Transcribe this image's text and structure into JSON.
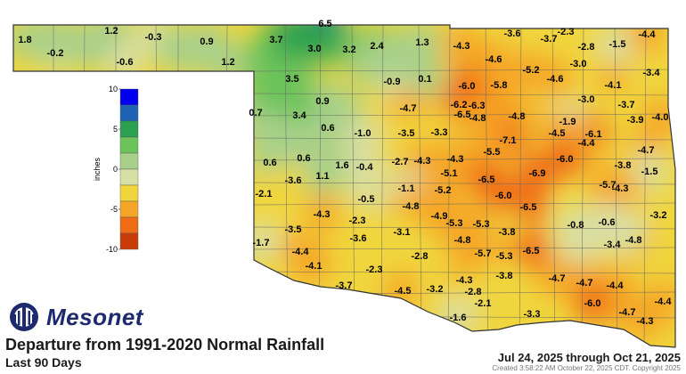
{
  "brand": {
    "name": "Mesonet"
  },
  "title": "Departure from 1991-2020 Normal Rainfall",
  "subtitle": "Last 90 Days",
  "date_range": "Jul 24, 2025 through Oct 21, 2025",
  "created": "Created 3:58:22 AM October 22, 2025 CDT. Copyright 2025",
  "legend": {
    "unit": "inches",
    "ticks": [
      "10",
      "5",
      "0",
      "-5",
      "-10"
    ],
    "colors": [
      "#0000ee",
      "#1f64b4",
      "#2aa050",
      "#6cc35a",
      "#a8d08a",
      "#d8dfa4",
      "#f0d63c",
      "#f5a628",
      "#f06c14",
      "#c83c0a"
    ]
  },
  "map_values": [
    {
      "label": "1.8",
      "v": 1.8,
      "region": "panhandle"
    },
    {
      "label": "-0.2",
      "v": -0.2,
      "region": "panhandle"
    },
    {
      "label": "1.2",
      "v": 1.2,
      "region": "panhandle"
    },
    {
      "label": "-0.3",
      "v": -0.3,
      "region": "panhandle"
    },
    {
      "label": "-0.6",
      "v": -0.6,
      "region": "panhandle"
    },
    {
      "label": "0.9",
      "v": 0.9,
      "region": "panhandle"
    },
    {
      "label": "1.2",
      "v": 1.2,
      "region": "panhandle"
    },
    {
      "label": "6.5",
      "v": 6.5,
      "region": "north central"
    },
    {
      "label": "3.7",
      "v": 3.7,
      "region": "northwest"
    },
    {
      "label": "3.0",
      "v": 3.0,
      "region": "north central"
    },
    {
      "label": "3.2",
      "v": 3.2,
      "region": "north central"
    },
    {
      "label": "2.4",
      "v": 2.4,
      "region": "north central"
    },
    {
      "label": "1.3",
      "v": 1.3,
      "region": "north central"
    },
    {
      "label": "-4.3",
      "v": -4.3,
      "region": "north central"
    },
    {
      "label": "-3.6",
      "v": -3.6,
      "region": "northeast"
    },
    {
      "label": "-3.7",
      "v": -3.7,
      "region": "northeast"
    },
    {
      "label": "-2.3",
      "v": -2.3,
      "region": "northeast"
    },
    {
      "label": "-2.8",
      "v": -2.8,
      "region": "northeast"
    },
    {
      "label": "-1.5",
      "v": -1.5,
      "region": "northeast"
    },
    {
      "label": "-4.4",
      "v": -4.4,
      "region": "northeast"
    },
    {
      "label": "3.5",
      "v": 3.5,
      "region": "northwest"
    },
    {
      "label": "-0.9",
      "v": -0.9,
      "region": "north central"
    },
    {
      "label": "0.1",
      "v": 0.1,
      "region": "north central"
    },
    {
      "label": "-4.6",
      "v": -4.6,
      "region": "north central"
    },
    {
      "label": "-5.2",
      "v": -5.2,
      "region": "northeast"
    },
    {
      "label": "-3.0",
      "v": -3.0,
      "region": "northeast"
    },
    {
      "label": "-3.4",
      "v": -3.4,
      "region": "northeast"
    },
    {
      "label": "-6.0",
      "v": -6.0,
      "region": "north central"
    },
    {
      "label": "-5.8",
      "v": -5.8,
      "region": "north central"
    },
    {
      "label": "-4.6",
      "v": -4.6,
      "region": "northeast"
    },
    {
      "label": "-4.1",
      "v": -4.1,
      "region": "northeast"
    },
    {
      "label": "0.9",
      "v": 0.9,
      "region": "northwest"
    },
    {
      "label": "-4.7",
      "v": -4.7,
      "region": "north central"
    },
    {
      "label": "-6.2",
      "v": -6.2,
      "region": "north central"
    },
    {
      "label": "-6.3",
      "v": -6.3,
      "region": "north central"
    },
    {
      "label": "-3.0",
      "v": -3.0,
      "region": "northeast"
    },
    {
      "label": "-3.7",
      "v": -3.7,
      "region": "northeast"
    },
    {
      "label": "0.7",
      "v": 0.7,
      "region": "west central"
    },
    {
      "label": "3.4",
      "v": 3.4,
      "region": "northwest"
    },
    {
      "label": "-6.5",
      "v": -6.5,
      "region": "central"
    },
    {
      "label": "-4.8",
      "v": -4.8,
      "region": "central"
    },
    {
      "label": "-4.8",
      "v": -4.8,
      "region": "central"
    },
    {
      "label": "-1.9",
      "v": -1.9,
      "region": "east central"
    },
    {
      "label": "-3.9",
      "v": -3.9,
      "region": "east central"
    },
    {
      "label": "-4.0",
      "v": -4.0,
      "region": "east central"
    },
    {
      "label": "0.6",
      "v": 0.6,
      "region": "west central"
    },
    {
      "label": "-1.0",
      "v": -1.0,
      "region": "west central"
    },
    {
      "label": "-3.5",
      "v": -3.5,
      "region": "central"
    },
    {
      "label": "-3.3",
      "v": -3.3,
      "region": "central"
    },
    {
      "label": "-4.5",
      "v": -4.5,
      "region": "east central"
    },
    {
      "label": "-6.1",
      "v": -6.1,
      "region": "east central"
    },
    {
      "label": "-7.1",
      "v": -7.1,
      "region": "central"
    },
    {
      "label": "-4.4",
      "v": -4.4,
      "region": "east central"
    },
    {
      "label": "-4.7",
      "v": -4.7,
      "region": "east central"
    },
    {
      "label": "0.6",
      "v": 0.6,
      "region": "west central"
    },
    {
      "label": "0.6",
      "v": 0.6,
      "region": "west central"
    },
    {
      "label": "1.6",
      "v": 1.6,
      "region": "west central"
    },
    {
      "label": "-0.4",
      "v": -0.4,
      "region": "west central"
    },
    {
      "label": "-2.7",
      "v": -2.7,
      "region": "central"
    },
    {
      "label": "-4.3",
      "v": -4.3,
      "region": "central"
    },
    {
      "label": "-4.3",
      "v": -4.3,
      "region": "central"
    },
    {
      "label": "-5.5",
      "v": -5.5,
      "region": "central"
    },
    {
      "label": "-6.0",
      "v": -6.0,
      "region": "east central"
    },
    {
      "label": "-3.8",
      "v": -3.8,
      "region": "east central"
    },
    {
      "label": "-1.5",
      "v": -1.5,
      "region": "east central"
    },
    {
      "label": "-3.6",
      "v": -3.6,
      "region": "west central"
    },
    {
      "label": "1.1",
      "v": 1.1,
      "region": "west central"
    },
    {
      "label": "-5.1",
      "v": -5.1,
      "region": "central"
    },
    {
      "label": "-6.9",
      "v": -6.9,
      "region": "central"
    },
    {
      "label": "-6.5",
      "v": -6.5,
      "region": "central"
    },
    {
      "label": "-5.7",
      "v": -5.7,
      "region": "east central"
    },
    {
      "label": "-4.3",
      "v": -4.3,
      "region": "east central"
    },
    {
      "label": "-2.1",
      "v": -2.1,
      "region": "southwest"
    },
    {
      "label": "-0.5",
      "v": -0.5,
      "region": "southwest"
    },
    {
      "label": "-1.1",
      "v": -1.1,
      "region": "south central"
    },
    {
      "label": "-5.2",
      "v": -5.2,
      "region": "central"
    },
    {
      "label": "-6.0",
      "v": -6.0,
      "region": "central"
    },
    {
      "label": "-6.5",
      "v": -6.5,
      "region": "central"
    },
    {
      "label": "-4.8",
      "v": -4.8,
      "region": "south central"
    },
    {
      "label": "-4.9",
      "v": -4.9,
      "region": "south central"
    },
    {
      "label": "-4.3",
      "v": -4.3,
      "region": "southwest"
    },
    {
      "label": "-2.3",
      "v": -2.3,
      "region": "southwest"
    },
    {
      "label": "-5.3",
      "v": -5.3,
      "region": "south central"
    },
    {
      "label": "-5.3",
      "v": -5.3,
      "region": "southeast"
    },
    {
      "label": "-0.8",
      "v": -0.8,
      "region": "southeast"
    },
    {
      "label": "-0.6",
      "v": -0.6,
      "region": "southeast"
    },
    {
      "label": "-3.2",
      "v": -3.2,
      "region": "southeast"
    },
    {
      "label": "-3.5",
      "v": -3.5,
      "region": "southwest"
    },
    {
      "label": "-3.1",
      "v": -3.1,
      "region": "south central"
    },
    {
      "label": "-3.8",
      "v": -3.8,
      "region": "south central"
    },
    {
      "label": "-1.7",
      "v": -1.7,
      "region": "southwest"
    },
    {
      "label": "-3.6",
      "v": -3.6,
      "region": "southwest"
    },
    {
      "label": "-4.8",
      "v": -4.8,
      "region": "south central"
    },
    {
      "label": "-3.4",
      "v": -3.4,
      "region": "southeast"
    },
    {
      "label": "-4.8",
      "v": -4.8,
      "region": "southeast"
    },
    {
      "label": "-4.4",
      "v": -4.4,
      "region": "southwest"
    },
    {
      "label": "-5.7",
      "v": -5.7,
      "region": "south central"
    },
    {
      "label": "-5.3",
      "v": -5.3,
      "region": "south central"
    },
    {
      "label": "-6.5",
      "v": -6.5,
      "region": "south central"
    },
    {
      "label": "-4.1",
      "v": -4.1,
      "region": "southwest"
    },
    {
      "label": "-2.3",
      "v": -2.3,
      "region": "southwest"
    },
    {
      "label": "-2.8",
      "v": -2.8,
      "region": "south central"
    },
    {
      "label": "-4.3",
      "v": -4.3,
      "region": "south central"
    },
    {
      "label": "-3.8",
      "v": -3.8,
      "region": "south central"
    },
    {
      "label": "-4.7",
      "v": -4.7,
      "region": "southeast"
    },
    {
      "label": "-4.7",
      "v": -4.7,
      "region": "southeast"
    },
    {
      "label": "-4.4",
      "v": -4.4,
      "region": "southeast"
    },
    {
      "label": "-3.7",
      "v": -3.7,
      "region": "southwest"
    },
    {
      "label": "-4.5",
      "v": -4.5,
      "region": "south central"
    },
    {
      "label": "-3.2",
      "v": -3.2,
      "region": "south central"
    },
    {
      "label": "-2.8",
      "v": -2.8,
      "region": "south central"
    },
    {
      "label": "-2.1",
      "v": -2.1,
      "region": "south central"
    },
    {
      "label": "-6.0",
      "v": -6.0,
      "region": "southeast"
    },
    {
      "label": "-4.4",
      "v": -4.4,
      "region": "southeast"
    },
    {
      "label": "-1.6",
      "v": -1.6,
      "region": "south central"
    },
    {
      "label": "-3.3",
      "v": -3.3,
      "region": "south central"
    },
    {
      "label": "-4.7",
      "v": -4.7,
      "region": "southeast"
    },
    {
      "label": "-4.3",
      "v": -4.3,
      "region": "southeast"
    }
  ]
}
